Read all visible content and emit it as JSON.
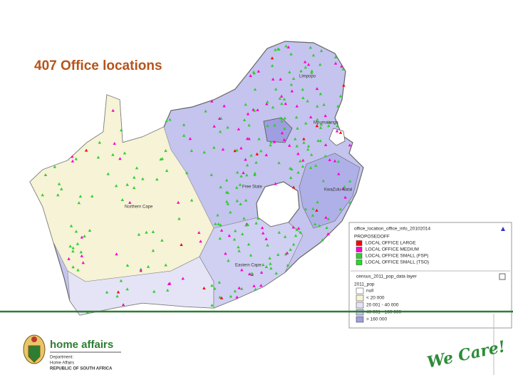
{
  "header": {
    "title": "407 Office locations"
  },
  "map": {
    "labels": [
      "Limpopo",
      "Mpumalanga",
      "Free State",
      "KwaZulu-Natal",
      "Northern Cape",
      "Eastern Cape"
    ]
  },
  "legend": {
    "title": "office_location_office_info_20102014",
    "group": "PROPOSEDOFF",
    "items": [
      {
        "label": "LOCAL OFFICE LARGE",
        "color": "#ff0000"
      },
      {
        "label": "LOCAL OFFICE MEDIUM",
        "color": "#ff00cc"
      },
      {
        "label": "LOCAL OFFICE SMALL (FSP)",
        "color": "#33cc33"
      },
      {
        "label": "LOCAL OFFICE SMALL (TSO)",
        "color": "#22dd22"
      }
    ]
  },
  "population": {
    "title": "census_2011_pop_data layer",
    "field": "2011_pop",
    "items": [
      {
        "label": "null",
        "color": "#ffffff"
      },
      {
        "label": "< 20 000",
        "color": "#f6f3d6"
      },
      {
        "label": "20 001 - 40 000",
        "color": "#e4e4f6"
      },
      {
        "label": "40 001 - 160 000",
        "color": "#c4c4ee"
      },
      {
        "label": "> 160 000",
        "color": "#9e9ee0"
      }
    ]
  },
  "footer": {
    "brand": "home affairs",
    "department": "Department:",
    "name": "Home Affairs",
    "country": "REPUBLIC OF SOUTH AFRICA",
    "slogan": "We Care!"
  }
}
